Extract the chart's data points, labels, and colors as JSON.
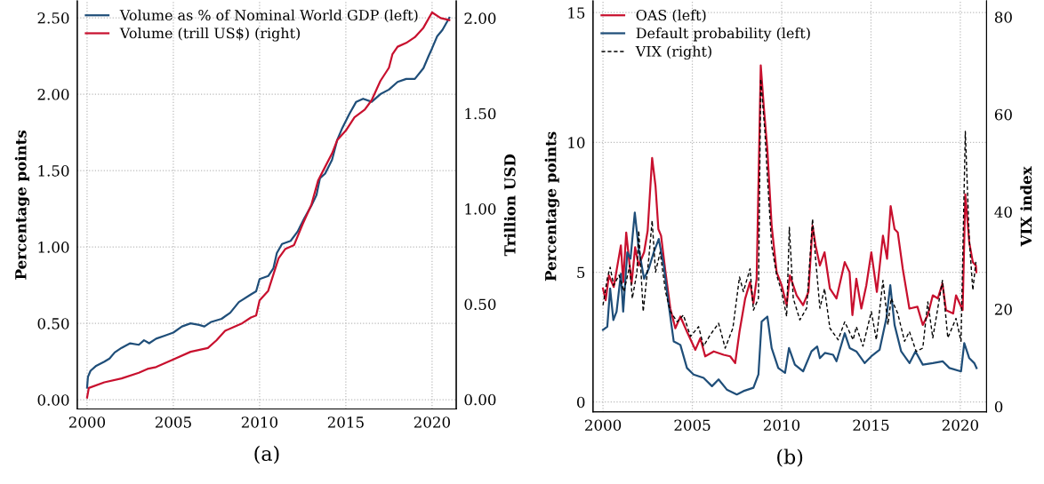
{
  "chart_data": [
    {
      "type": "line",
      "ylabel": "Percentage points",
      "y2label": "Trillion USD",
      "annotations": [
        "(a)"
      ],
      "legend": "top left",
      "grid": true,
      "line_style": "solid",
      "xlim": [
        1999.43,
        2021.4
      ],
      "xticks": [
        2000,
        2005,
        2010,
        2015,
        2020
      ],
      "ylim": [
        -0.06,
        2.61
      ],
      "yticks": [
        {
          "value": 0,
          "label": "0.00"
        },
        {
          "value": 0.5,
          "label": "0.50"
        },
        {
          "value": 1,
          "label": "1.00"
        },
        {
          "value": 1.5,
          "label": "1.50"
        },
        {
          "value": 2,
          "label": "2.00"
        },
        {
          "value": 2.5,
          "label": "2.50"
        }
      ],
      "y2lim": [
        -0.05,
        2.09
      ],
      "y2ticks": [
        {
          "value": 0,
          "label": "0.00"
        },
        {
          "value": 0.5,
          "label": "0.50"
        },
        {
          "value": 1,
          "label": "1.00"
        },
        {
          "value": 1.5,
          "label": "1.50"
        },
        {
          "value": 2,
          "label": "2.00"
        }
      ],
      "series": [
        {
          "name": "Volume as % of Nominal World GDP (left)",
          "color": "#1f4e79",
          "x": [
            2000.0,
            2000.05,
            2000.2,
            2000.5,
            2001.0,
            2001.3,
            2001.6,
            2002.0,
            2002.5,
            2003.0,
            2003.3,
            2003.6,
            2004.0,
            2004.5,
            2005.0,
            2005.5,
            2006.0,
            2006.5,
            2006.8,
            2007.2,
            2007.8,
            2008.3,
            2008.8,
            2009.5,
            2009.8,
            2010.0,
            2010.5,
            2010.8,
            2011.0,
            2011.3,
            2011.8,
            2012.2,
            2012.6,
            2013.0,
            2013.3,
            2013.5,
            2013.8,
            2014.2,
            2014.5,
            2014.8,
            2015.2,
            2015.6,
            2016.0,
            2016.5,
            2017.0,
            2017.5,
            2018.0,
            2018.5,
            2019.0,
            2019.5,
            2019.8,
            2020.0,
            2020.3,
            2020.6,
            2021.0
          ],
          "values": [
            0.08,
            0.15,
            0.19,
            0.22,
            0.25,
            0.27,
            0.31,
            0.34,
            0.37,
            0.36,
            0.39,
            0.37,
            0.4,
            0.42,
            0.44,
            0.48,
            0.5,
            0.49,
            0.48,
            0.51,
            0.53,
            0.57,
            0.64,
            0.69,
            0.71,
            0.79,
            0.81,
            0.86,
            0.96,
            1.02,
            1.04,
            1.1,
            1.19,
            1.27,
            1.34,
            1.45,
            1.48,
            1.57,
            1.7,
            1.78,
            1.87,
            1.95,
            1.97,
            1.95,
            2.0,
            2.03,
            2.08,
            2.1,
            2.1,
            2.17,
            2.25,
            2.3,
            2.38,
            2.42,
            2.5
          ]
        },
        {
          "name": "Volume (trill US$) (right)",
          "color": "#c8102e",
          "axis": "y2",
          "x": [
            2000.0,
            2000.1,
            2001.0,
            2002.0,
            2003.0,
            2003.5,
            2004.0,
            2005.0,
            2006.0,
            2007.0,
            2007.5,
            2008.0,
            2008.5,
            2009.0,
            2009.5,
            2009.8,
            2010.0,
            2010.5,
            2011.1,
            2011.5,
            2012.0,
            2012.5,
            2013.0,
            2013.4,
            2013.8,
            2014.2,
            2014.5,
            2015.0,
            2015.5,
            2016.1,
            2016.5,
            2017.0,
            2017.5,
            2017.7,
            2018.0,
            2018.5,
            2019.0,
            2019.5,
            2020.0,
            2020.5,
            2021.0
          ],
          "values": [
            0.01,
            0.06,
            0.09,
            0.11,
            0.14,
            0.16,
            0.17,
            0.21,
            0.25,
            0.27,
            0.31,
            0.36,
            0.38,
            0.4,
            0.43,
            0.44,
            0.52,
            0.57,
            0.74,
            0.79,
            0.81,
            0.92,
            1.02,
            1.15,
            1.22,
            1.29,
            1.36,
            1.41,
            1.48,
            1.52,
            1.57,
            1.67,
            1.74,
            1.81,
            1.85,
            1.87,
            1.9,
            1.95,
            2.03,
            2.0,
            1.99
          ]
        }
      ]
    },
    {
      "type": "line",
      "ylabel": "Percentage points",
      "y2label": "VIX index",
      "annotations": [
        "(b)"
      ],
      "legend": "top left",
      "grid": true,
      "xlim": [
        1999.44,
        2021.47
      ],
      "xticks": [
        2000,
        2005,
        2010,
        2015,
        2020
      ],
      "ylim": [
        -0.38,
        15.45
      ],
      "yticks": [
        0,
        5,
        10,
        15
      ],
      "y2lim": [
        -1.1,
        83.3
      ],
      "y2ticks": [
        0,
        20,
        40,
        60,
        80
      ],
      "series": [
        {
          "name": "OAS (left)",
          "color": "#c8102e",
          "line_style": "solid",
          "x": [
            2000.0,
            2000.15,
            2000.33,
            2000.6,
            2001.0,
            2001.13,
            2001.3,
            2001.6,
            2001.8,
            2002.0,
            2002.3,
            2002.5,
            2002.75,
            2002.94,
            2003.1,
            2003.25,
            2003.5,
            2003.77,
            2004.05,
            2004.33,
            2004.7,
            2005.17,
            2005.45,
            2005.72,
            2006.2,
            2006.75,
            2007.12,
            2007.4,
            2007.64,
            2007.96,
            2008.23,
            2008.42,
            2008.6,
            2008.83,
            2009.0,
            2009.2,
            2009.44,
            2009.72,
            2010.0,
            2010.28,
            2010.46,
            2010.84,
            2011.2,
            2011.5,
            2011.73,
            2011.9,
            2012.14,
            2012.4,
            2012.7,
            2013.07,
            2013.53,
            2013.8,
            2013.96,
            2014.18,
            2014.46,
            2014.74,
            2015.02,
            2015.33,
            2015.67,
            2015.9,
            2016.1,
            2016.32,
            2016.5,
            2016.78,
            2017.15,
            2017.6,
            2017.9,
            2018.18,
            2018.46,
            2018.74,
            2019.0,
            2019.2,
            2019.6,
            2019.76,
            2020.13,
            2020.28,
            2020.5,
            2020.7,
            2020.87,
            2020.9
          ],
          "values": [
            4.37,
            3.92,
            4.88,
            4.43,
            6.03,
            4.62,
            6.53,
            4.56,
            5.96,
            5.26,
            5.77,
            6.6,
            9.4,
            8.32,
            6.66,
            6.41,
            5.0,
            3.6,
            2.84,
            3.29,
            2.71,
            2.01,
            2.46,
            1.76,
            1.95,
            1.82,
            1.76,
            1.5,
            2.71,
            3.99,
            4.62,
            3.8,
            4.75,
            12.97,
            11.38,
            9.72,
            6.79,
            5.0,
            4.5,
            3.73,
            4.88,
            4.11,
            3.73,
            4.24,
            6.79,
            6.03,
            5.26,
            5.77,
            4.37,
            3.99,
            5.39,
            5.0,
            3.35,
            4.75,
            3.6,
            4.5,
            5.77,
            4.24,
            6.41,
            5.52,
            7.55,
            6.66,
            6.53,
            5.13,
            3.6,
            3.67,
            2.97,
            3.35,
            4.11,
            3.99,
            4.56,
            3.54,
            3.41,
            4.11,
            3.54,
            8.0,
            6.15,
            5.39,
            5.26,
            5.0
          ]
        },
        {
          "name": "Default probability (left)",
          "color": "#1f4e79",
          "line_style": "solid",
          "x": [
            2000.0,
            2000.24,
            2000.4,
            2000.58,
            2000.76,
            2001.0,
            2001.13,
            2001.36,
            2001.54,
            2001.78,
            2002.0,
            2002.3,
            2002.56,
            2002.84,
            2003.12,
            2003.4,
            2003.68,
            2003.96,
            2004.33,
            2004.7,
            2005.07,
            2005.63,
            2006.1,
            2006.47,
            2006.93,
            2007.49,
            2007.86,
            2008.42,
            2008.7,
            2008.88,
            2009.2,
            2009.44,
            2009.81,
            2010.19,
            2010.41,
            2010.74,
            2011.2,
            2011.67,
            2011.99,
            2012.14,
            2012.42,
            2012.88,
            2013.07,
            2013.53,
            2013.81,
            2014.18,
            2014.65,
            2015.02,
            2015.48,
            2015.86,
            2016.08,
            2016.32,
            2016.69,
            2017.16,
            2017.49,
            2017.9,
            2018.46,
            2019.01,
            2019.39,
            2020.04,
            2020.22,
            2020.5,
            2020.78,
            2020.91
          ],
          "values": [
            2.78,
            2.9,
            4.37,
            3.16,
            3.48,
            4.94,
            3.48,
            5.77,
            5.52,
            7.3,
            5.9,
            4.75,
            5.13,
            5.77,
            6.28,
            5.26,
            3.73,
            2.33,
            2.2,
            1.31,
            1.06,
            0.93,
            0.61,
            0.87,
            0.48,
            0.29,
            0.42,
            0.55,
            1.06,
            3.1,
            3.29,
            2.08,
            1.31,
            1.12,
            2.08,
            1.44,
            1.18,
            1.95,
            2.14,
            1.69,
            1.89,
            1.82,
            1.57,
            2.65,
            2.08,
            1.95,
            1.5,
            1.76,
            2.01,
            3.22,
            4.5,
            2.97,
            1.95,
            1.5,
            1.95,
            1.44,
            1.5,
            1.57,
            1.31,
            1.18,
            2.27,
            1.69,
            1.5,
            1.31
          ]
        },
        {
          "name": "VIX (right)",
          "color": "#000000",
          "axis": "y2",
          "line_style": "dashed",
          "x": [
            2000.0,
            2000.24,
            2000.4,
            2000.6,
            2000.9,
            2001.17,
            2001.5,
            2001.64,
            2001.9,
            2002.0,
            2002.25,
            2002.56,
            2002.75,
            2002.94,
            2003.2,
            2003.5,
            2003.77,
            2004.15,
            2004.5,
            2004.9,
            2005.35,
            2005.63,
            2006.0,
            2006.47,
            2006.84,
            2007.27,
            2007.64,
            2007.86,
            2008.23,
            2008.42,
            2008.7,
            2008.83,
            2009.07,
            2009.2,
            2009.44,
            2009.72,
            2010.0,
            2010.28,
            2010.43,
            2010.65,
            2011.02,
            2011.4,
            2011.73,
            2011.9,
            2012.14,
            2012.4,
            2012.7,
            2013.16,
            2013.53,
            2014.0,
            2014.18,
            2014.55,
            2015.02,
            2015.3,
            2015.67,
            2015.95,
            2016.13,
            2016.5,
            2016.88,
            2017.15,
            2017.53,
            2017.9,
            2018.18,
            2018.46,
            2019.0,
            2019.3,
            2019.76,
            2020.04,
            2020.28,
            2020.5,
            2020.7,
            2020.87
          ],
          "values": [
            20.8,
            26.3,
            28.6,
            24.9,
            27.0,
            23.6,
            29.0,
            22.2,
            27.6,
            36.1,
            19.5,
            30.3,
            38.2,
            27.6,
            31.7,
            23.6,
            19.5,
            17.4,
            18.8,
            14.4,
            16.4,
            12.4,
            14.7,
            17.1,
            12.0,
            16.1,
            26.6,
            23.6,
            28.3,
            19.8,
            22.2,
            67.3,
            56.1,
            47.3,
            33.1,
            27.0,
            23.6,
            18.5,
            36.8,
            22.2,
            17.8,
            20.2,
            38.5,
            30.3,
            20.2,
            24.2,
            16.1,
            13.7,
            17.4,
            13.7,
            16.4,
            12.4,
            19.5,
            13.7,
            25.9,
            16.8,
            22.2,
            19.1,
            13.4,
            15.4,
            11.3,
            12.0,
            21.5,
            14.1,
            25.9,
            14.1,
            18.1,
            13.4,
            56.5,
            34.4,
            23.9,
            29.7
          ]
        }
      ]
    }
  ]
}
